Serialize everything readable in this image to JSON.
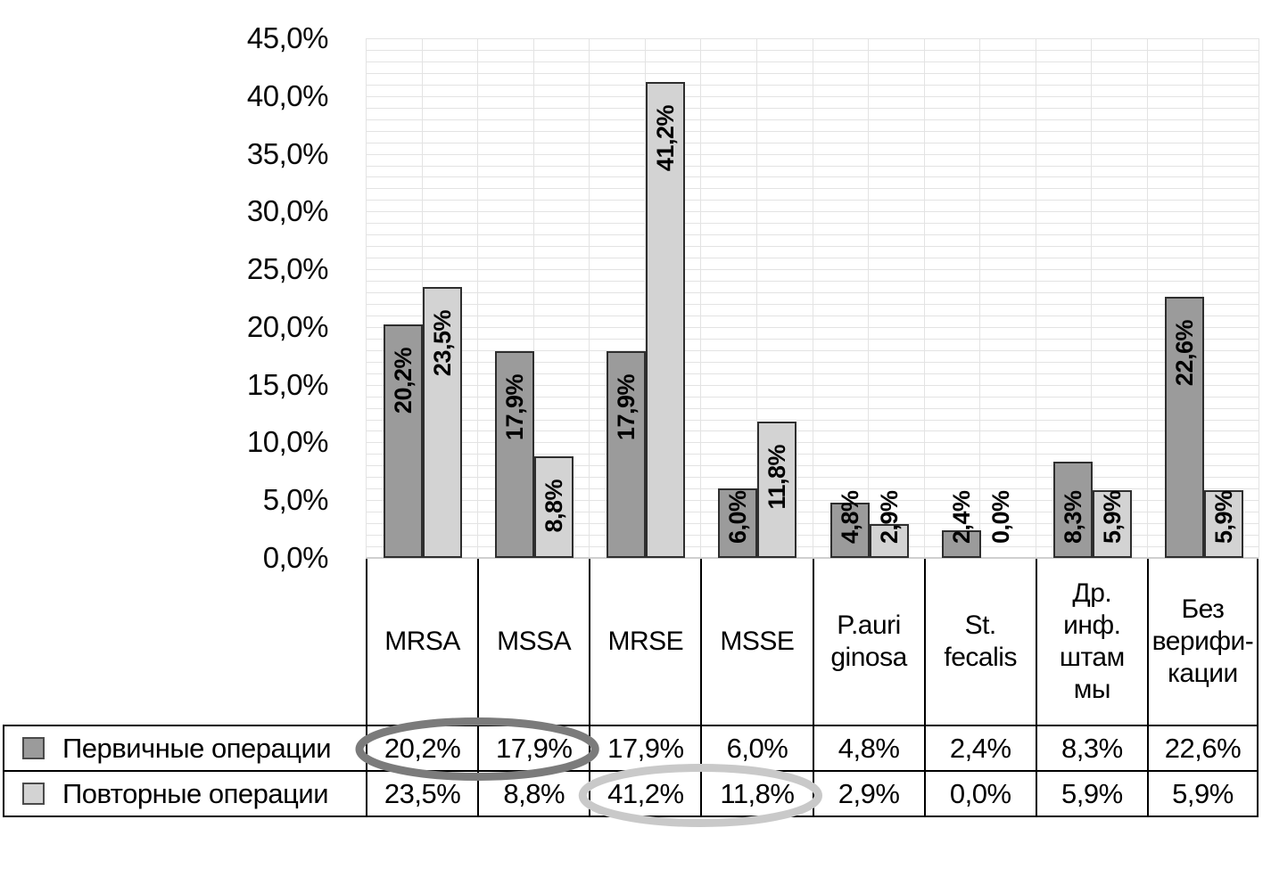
{
  "chart_data": {
    "type": "bar",
    "title": "",
    "xlabel": "",
    "ylabel": "",
    "categories": [
      "MRSA",
      "MSSA",
      "MRSE",
      "MSSE",
      "P.auri\nginosa",
      "St.\nfecalis",
      "Др.\nинф.\nштам\nмы",
      "Без\nверифи-\nкации"
    ],
    "series": [
      {
        "name": "Первичные операции",
        "values": [
          20.2,
          17.9,
          17.9,
          6.0,
          4.8,
          2.4,
          8.3,
          22.6
        ],
        "labels": [
          "20,2%",
          "17,9%",
          "17,9%",
          "6,0%",
          "4,8%",
          "2,4%",
          "8,3%",
          "22,6%"
        ],
        "color": "#9b9b9b"
      },
      {
        "name": "Повторные операции",
        "values": [
          23.5,
          8.8,
          41.2,
          11.8,
          2.9,
          0.0,
          5.9,
          5.9
        ],
        "labels": [
          "23,5%",
          "8,8%",
          "41,2%",
          "11,8%",
          "2,9%",
          "0,0%",
          "5,9%",
          "5,9%"
        ],
        "color": "#d3d3d3"
      }
    ],
    "ylim": [
      0,
      45
    ],
    "y_tick_labels": [
      "0,0%",
      "5,0%",
      "10,0%",
      "15,0%",
      "20,0%",
      "25,0%",
      "30,0%",
      "35,0%",
      "40,0%",
      "45,0%"
    ],
    "y_minor_unit_percent": 1,
    "grid": "minor horizontal and vertical, light gray",
    "legend_position": "bottom data table"
  },
  "annotations": [
    {
      "shape": "ellipse",
      "row": 0,
      "from_col": 0,
      "to_col": 1,
      "circled_values": "20,2% 17,9%",
      "color": "#7b7b7b"
    },
    {
      "shape": "ellipse",
      "row": 1,
      "from_col": 2,
      "to_col": 3,
      "circled_values": "41,2% 11,8%",
      "color": "#c9c9c9"
    }
  ],
  "colors": {
    "bar_primary_fill": "#9b9b9b",
    "bar_secondary_fill": "#d3d3d3",
    "bar_border": "#2e2e2e",
    "gridline": "#e3e3e3",
    "table_border": "#000000",
    "background": "#ffffff"
  }
}
